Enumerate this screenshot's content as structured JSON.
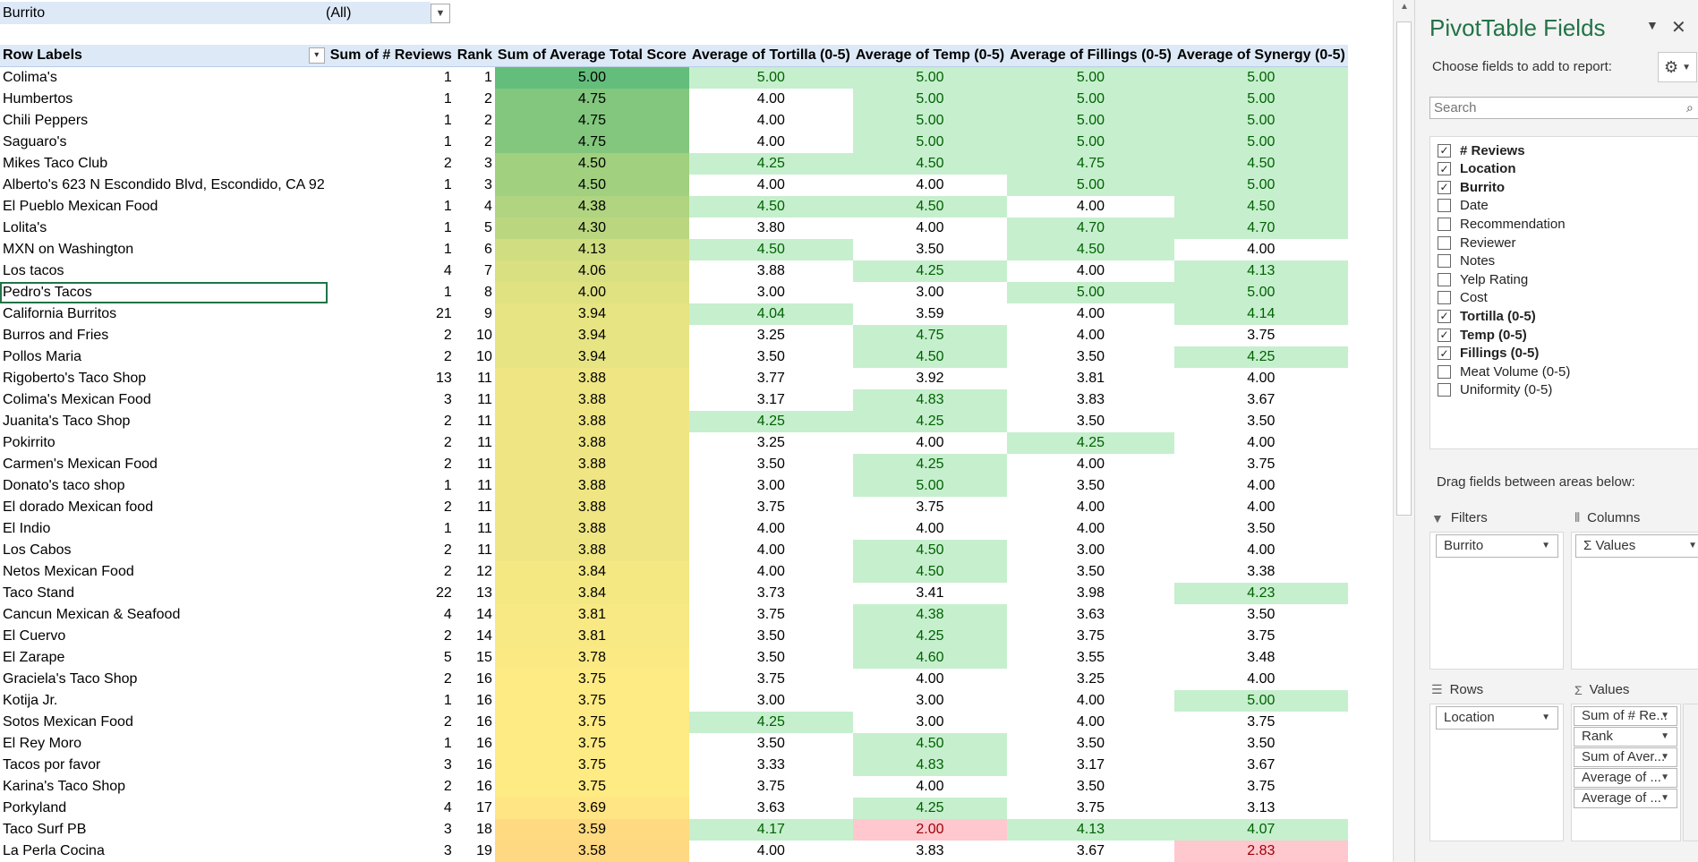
{
  "filter": {
    "label": "Burrito",
    "value": "(All)"
  },
  "headers": {
    "row_labels": "Row Labels",
    "reviews": "Sum of # Reviews",
    "rank": "Rank",
    "avg_total": "Sum of Average Total Score",
    "tortilla": "Average of Tortilla (0-5)",
    "temp": "Average of Temp (0-5)",
    "fillings": "Average of Fillings (0-5)",
    "synergy": "Average of Synergy (0-5)"
  },
  "rows": [
    {
      "name": "Colima's",
      "reviews": "1",
      "rank": "1",
      "score": "5.00",
      "tortilla": "5.00",
      "temp": "5.00",
      "fillings": "5.00",
      "synergy": "5.00"
    },
    {
      "name": "Humbertos",
      "reviews": "1",
      "rank": "2",
      "score": "4.75",
      "tortilla": "4.00",
      "temp": "5.00",
      "fillings": "5.00",
      "synergy": "5.00"
    },
    {
      "name": "Chili Peppers",
      "reviews": "1",
      "rank": "2",
      "score": "4.75",
      "tortilla": "4.00",
      "temp": "5.00",
      "fillings": "5.00",
      "synergy": "5.00"
    },
    {
      "name": "Saguaro's",
      "reviews": "1",
      "rank": "2",
      "score": "4.75",
      "tortilla": "4.00",
      "temp": "5.00",
      "fillings": "5.00",
      "synergy": "5.00"
    },
    {
      "name": "Mikes Taco Club",
      "reviews": "2",
      "rank": "3",
      "score": "4.50",
      "tortilla": "4.25",
      "temp": "4.50",
      "fillings": "4.75",
      "synergy": "4.50"
    },
    {
      "name": "Alberto's 623 N Escondido Blvd, Escondido, CA 92",
      "reviews": "1",
      "rank": "3",
      "score": "4.50",
      "tortilla": "4.00",
      "temp": "4.00",
      "fillings": "5.00",
      "synergy": "5.00"
    },
    {
      "name": "El Pueblo Mexican Food",
      "reviews": "1",
      "rank": "4",
      "score": "4.38",
      "tortilla": "4.50",
      "temp": "4.50",
      "fillings": "4.00",
      "synergy": "4.50"
    },
    {
      "name": "Lolita's",
      "reviews": "1",
      "rank": "5",
      "score": "4.30",
      "tortilla": "3.80",
      "temp": "4.00",
      "fillings": "4.70",
      "synergy": "4.70"
    },
    {
      "name": "MXN on Washington",
      "reviews": "1",
      "rank": "6",
      "score": "4.13",
      "tortilla": "4.50",
      "temp": "3.50",
      "fillings": "4.50",
      "synergy": "4.00"
    },
    {
      "name": "Los tacos",
      "reviews": "4",
      "rank": "7",
      "score": "4.06",
      "tortilla": "3.88",
      "temp": "4.25",
      "fillings": "4.00",
      "synergy": "4.13"
    },
    {
      "name": "Pedro's Tacos",
      "reviews": "1",
      "rank": "8",
      "score": "4.00",
      "tortilla": "3.00",
      "temp": "3.00",
      "fillings": "5.00",
      "synergy": "5.00"
    },
    {
      "name": "California Burritos",
      "reviews": "21",
      "rank": "9",
      "score": "3.94",
      "tortilla": "4.04",
      "temp": "3.59",
      "fillings": "4.00",
      "synergy": "4.14"
    },
    {
      "name": "Burros and Fries",
      "reviews": "2",
      "rank": "10",
      "score": "3.94",
      "tortilla": "3.25",
      "temp": "4.75",
      "fillings": "4.00",
      "synergy": "3.75"
    },
    {
      "name": "Pollos Maria",
      "reviews": "2",
      "rank": "10",
      "score": "3.94",
      "tortilla": "3.50",
      "temp": "4.50",
      "fillings": "3.50",
      "synergy": "4.25"
    },
    {
      "name": "Rigoberto's Taco Shop",
      "reviews": "13",
      "rank": "11",
      "score": "3.88",
      "tortilla": "3.77",
      "temp": "3.92",
      "fillings": "3.81",
      "synergy": "4.00"
    },
    {
      "name": "Colima's Mexican Food",
      "reviews": "3",
      "rank": "11",
      "score": "3.88",
      "tortilla": "3.17",
      "temp": "4.83",
      "fillings": "3.83",
      "synergy": "3.67"
    },
    {
      "name": "Juanita's Taco Shop",
      "reviews": "2",
      "rank": "11",
      "score": "3.88",
      "tortilla": "4.25",
      "temp": "4.25",
      "fillings": "3.50",
      "synergy": "3.50"
    },
    {
      "name": "Pokirrito",
      "reviews": "2",
      "rank": "11",
      "score": "3.88",
      "tortilla": "3.25",
      "temp": "4.00",
      "fillings": "4.25",
      "synergy": "4.00"
    },
    {
      "name": "Carmen's Mexican Food",
      "reviews": "2",
      "rank": "11",
      "score": "3.88",
      "tortilla": "3.50",
      "temp": "4.25",
      "fillings": "4.00",
      "synergy": "3.75"
    },
    {
      "name": "Donato's taco shop",
      "reviews": "1",
      "rank": "11",
      "score": "3.88",
      "tortilla": "3.00",
      "temp": "5.00",
      "fillings": "3.50",
      "synergy": "4.00"
    },
    {
      "name": "El dorado Mexican food",
      "reviews": "2",
      "rank": "11",
      "score": "3.88",
      "tortilla": "3.75",
      "temp": "3.75",
      "fillings": "4.00",
      "synergy": "4.00"
    },
    {
      "name": "El Indio",
      "reviews": "1",
      "rank": "11",
      "score": "3.88",
      "tortilla": "4.00",
      "temp": "4.00",
      "fillings": "4.00",
      "synergy": "3.50"
    },
    {
      "name": "Los Cabos",
      "reviews": "2",
      "rank": "11",
      "score": "3.88",
      "tortilla": "4.00",
      "temp": "4.50",
      "fillings": "3.00",
      "synergy": "4.00"
    },
    {
      "name": "Netos Mexican Food",
      "reviews": "2",
      "rank": "12",
      "score": "3.84",
      "tortilla": "4.00",
      "temp": "4.50",
      "fillings": "3.50",
      "synergy": "3.38"
    },
    {
      "name": "Taco Stand",
      "reviews": "22",
      "rank": "13",
      "score": "3.84",
      "tortilla": "3.73",
      "temp": "3.41",
      "fillings": "3.98",
      "synergy": "4.23"
    },
    {
      "name": "Cancun Mexican & Seafood",
      "reviews": "4",
      "rank": "14",
      "score": "3.81",
      "tortilla": "3.75",
      "temp": "4.38",
      "fillings": "3.63",
      "synergy": "3.50"
    },
    {
      "name": "El Cuervo",
      "reviews": "2",
      "rank": "14",
      "score": "3.81",
      "tortilla": "3.50",
      "temp": "4.25",
      "fillings": "3.75",
      "synergy": "3.75"
    },
    {
      "name": "El Zarape",
      "reviews": "5",
      "rank": "15",
      "score": "3.78",
      "tortilla": "3.50",
      "temp": "4.60",
      "fillings": "3.55",
      "synergy": "3.48"
    },
    {
      "name": "Graciela's Taco Shop",
      "reviews": "2",
      "rank": "16",
      "score": "3.75",
      "tortilla": "3.75",
      "temp": "4.00",
      "fillings": "3.25",
      "synergy": "4.00"
    },
    {
      "name": "Kotija Jr.",
      "reviews": "1",
      "rank": "16",
      "score": "3.75",
      "tortilla": "3.00",
      "temp": "3.00",
      "fillings": "4.00",
      "synergy": "5.00"
    },
    {
      "name": "Sotos Mexican Food",
      "reviews": "2",
      "rank": "16",
      "score": "3.75",
      "tortilla": "4.25",
      "temp": "3.00",
      "fillings": "4.00",
      "synergy": "3.75"
    },
    {
      "name": "El Rey Moro",
      "reviews": "1",
      "rank": "16",
      "score": "3.75",
      "tortilla": "3.50",
      "temp": "4.50",
      "fillings": "3.50",
      "synergy": "3.50"
    },
    {
      "name": "Tacos por favor",
      "reviews": "3",
      "rank": "16",
      "score": "3.75",
      "tortilla": "3.33",
      "temp": "4.83",
      "fillings": "3.17",
      "synergy": "3.67"
    },
    {
      "name": "Karina's Taco Shop",
      "reviews": "2",
      "rank": "16",
      "score": "3.75",
      "tortilla": "3.75",
      "temp": "4.00",
      "fillings": "3.50",
      "synergy": "3.75"
    },
    {
      "name": "Porkyland",
      "reviews": "4",
      "rank": "17",
      "score": "3.69",
      "tortilla": "3.63",
      "temp": "4.25",
      "fillings": "3.75",
      "synergy": "3.13"
    },
    {
      "name": "Taco Surf PB",
      "reviews": "3",
      "rank": "18",
      "score": "3.59",
      "tortilla": "4.17",
      "temp": "2.00",
      "fillings": "4.13",
      "synergy": "4.07"
    },
    {
      "name": "La Perla Cocina",
      "reviews": "3",
      "rank": "19",
      "score": "3.58",
      "tortilla": "4.00",
      "temp": "3.83",
      "fillings": "3.67",
      "synergy": "2.83"
    }
  ],
  "panel": {
    "title": "PivotTable Fields",
    "subtitle": "Choose fields to add to report:",
    "search_placeholder": "Search",
    "fields": [
      {
        "label": "# Reviews",
        "checked": true
      },
      {
        "label": "Location",
        "checked": true
      },
      {
        "label": "Burrito",
        "checked": true
      },
      {
        "label": "Date",
        "checked": false
      },
      {
        "label": "Recommendation",
        "checked": false
      },
      {
        "label": "Reviewer",
        "checked": false
      },
      {
        "label": "Notes",
        "checked": false
      },
      {
        "label": "Yelp Rating",
        "checked": false
      },
      {
        "label": "Cost",
        "checked": false
      },
      {
        "label": "Tortilla (0-5)",
        "checked": true
      },
      {
        "label": "Temp (0-5)",
        "checked": true
      },
      {
        "label": "Fillings (0-5)",
        "checked": true
      },
      {
        "label": "Meat Volume (0-5)",
        "checked": false
      },
      {
        "label": "Uniformity (0-5)",
        "checked": false
      }
    ],
    "drag_hint": "Drag fields between areas below:",
    "areas": {
      "filters": {
        "label": "Filters",
        "items": [
          "Burrito"
        ]
      },
      "columns": {
        "label": "Columns",
        "items": [
          "Σ Values"
        ]
      },
      "rows": {
        "label": "Rows",
        "items": [
          "Location"
        ]
      },
      "values": {
        "label": "Values",
        "items": [
          "Sum of # Re...",
          "Rank",
          "Sum of Aver...",
          "Average of ...",
          "Average of ..."
        ]
      }
    }
  },
  "colors": {
    "accent": "#217346",
    "header_bg": "#dde9f7",
    "good_fill": "#c6efce",
    "good_text": "#006100",
    "bad_fill": "#ffc7ce",
    "bad_text": "#9c0006"
  }
}
